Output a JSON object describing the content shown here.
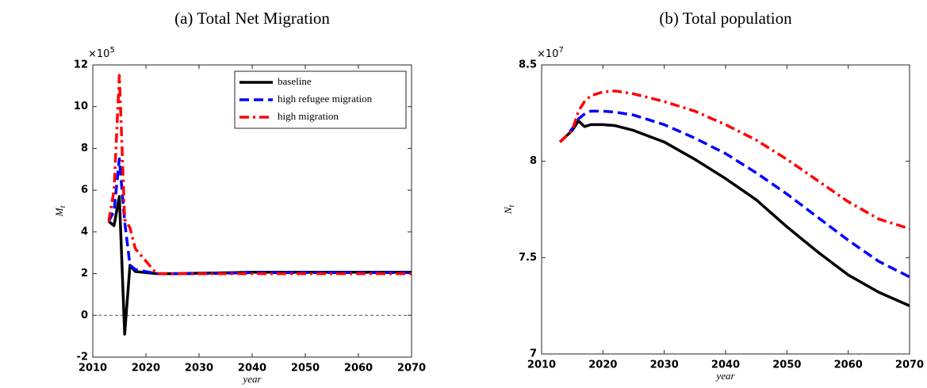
{
  "chart_data": [
    {
      "type": "line",
      "title": "(a) Total Net Migration",
      "xlabel": "year",
      "ylabel": "M",
      "ylabel_sub": "t",
      "y_multiplier": {
        "base": "×10",
        "exponent": "5"
      },
      "x": [
        2013,
        2014,
        2015,
        2016,
        2017,
        2018,
        2020,
        2022,
        2025,
        2030,
        2035,
        2040,
        2045,
        2050,
        2055,
        2060,
        2065,
        2070
      ],
      "series": [
        {
          "name": "baseline",
          "color": "#000000",
          "style": "solid",
          "values": [
            4.5,
            4.3,
            5.7,
            -0.9,
            2.4,
            2.1,
            2.05,
            2.0,
            2.0,
            2.02,
            2.04,
            2.07,
            2.07,
            2.07,
            2.07,
            2.07,
            2.07,
            2.07
          ]
        },
        {
          "name": "high refugee migration",
          "color": "#0000ff",
          "style": "dashed",
          "values": [
            4.5,
            5.0,
            7.5,
            4.5,
            2.4,
            2.2,
            2.1,
            2.0,
            2.0,
            2.0,
            2.02,
            2.05,
            2.05,
            2.05,
            2.05,
            2.05,
            2.05,
            2.05
          ]
        },
        {
          "name": "high migration",
          "color": "#ff0000",
          "style": "dashdot",
          "values": [
            4.5,
            6.0,
            11.5,
            4.6,
            4.2,
            3.2,
            2.6,
            2.0,
            2.0,
            2.0,
            2.0,
            2.0,
            2.0,
            2.0,
            2.0,
            2.0,
            2.0,
            2.0
          ]
        }
      ],
      "hline": 0,
      "legend": "upper-right",
      "xlim": [
        2010,
        2070
      ],
      "xticks": [
        2010,
        2020,
        2030,
        2040,
        2050,
        2060,
        2070
      ],
      "ylim": [
        -2,
        12
      ],
      "yticks": [
        -2,
        0,
        2,
        4,
        6,
        8,
        10,
        12
      ]
    },
    {
      "type": "line",
      "title": "(b) Total population",
      "xlabel": "year",
      "ylabel": "N",
      "ylabel_sub": "t",
      "y_multiplier": {
        "base": "×10",
        "exponent": "7"
      },
      "x": [
        2013,
        2014,
        2015,
        2016,
        2017,
        2018,
        2020,
        2022,
        2025,
        2030,
        2035,
        2040,
        2045,
        2050,
        2055,
        2060,
        2065,
        2070
      ],
      "series": [
        {
          "color": "#000000",
          "style": "solid",
          "values": [
            8.1,
            8.13,
            8.16,
            8.21,
            8.18,
            8.19,
            8.19,
            8.185,
            8.16,
            8.1,
            8.01,
            7.91,
            7.8,
            7.66,
            7.53,
            7.41,
            7.32,
            7.25
          ]
        },
        {
          "color": "#0000ff",
          "style": "dashed",
          "values": [
            8.1,
            8.13,
            8.17,
            8.22,
            8.245,
            8.26,
            8.26,
            8.255,
            8.24,
            8.19,
            8.12,
            8.04,
            7.94,
            7.83,
            7.71,
            7.59,
            7.48,
            7.4
          ]
        },
        {
          "color": "#ff0000",
          "style": "dashdot",
          "values": [
            8.1,
            8.13,
            8.16,
            8.26,
            8.31,
            8.34,
            8.36,
            8.365,
            8.35,
            8.31,
            8.26,
            8.19,
            8.11,
            8.01,
            7.9,
            7.79,
            7.7,
            7.65
          ]
        }
      ],
      "xlim": [
        2010,
        2070
      ],
      "xticks": [
        2010,
        2020,
        2030,
        2040,
        2050,
        2060,
        2070
      ],
      "ylim": [
        7,
        8.5
      ],
      "yticks": [
        7,
        7.5,
        8,
        8.5
      ]
    }
  ]
}
